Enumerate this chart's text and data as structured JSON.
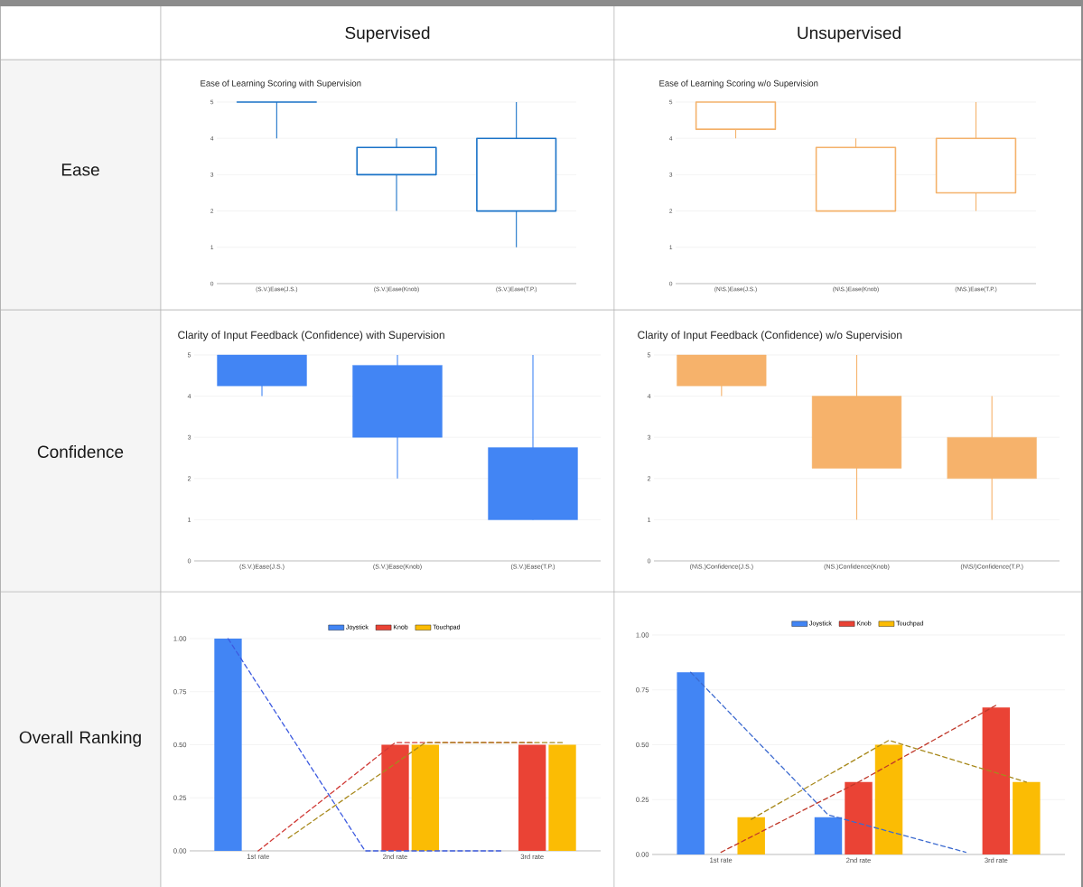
{
  "chart_data": [
    {
      "type": "other",
      "annotations": [
        "Supervised",
        "Unsupervised",
        "Ease",
        "Confidence",
        "Overall Ranking"
      ]
    },
    {
      "type": "candlestick",
      "title": "Ease of Learning Scoring with Supervision",
      "categories": [
        "(S.V.)Ease(J.S.)",
        "(S.V.)Ease(Knob)",
        "(S.V.)Ease(T.P.)"
      ],
      "color": "#1a73c8",
      "ohlc": [
        [
          5,
          5,
          4,
          5
        ],
        [
          3,
          4,
          2,
          3.75
        ],
        [
          2,
          5,
          1,
          4
        ]
      ],
      "ylim": [
        0,
        5
      ],
      "yticks": [
        0,
        1,
        2,
        3,
        4,
        5
      ],
      "grid": "y"
    },
    {
      "type": "candlestick",
      "title": "Ease of Learning Scoring w/o Supervision",
      "categories": [
        "(N\\S.)Ease(J.S.)",
        "(N\\S.)Ease(Knob)",
        "(N\\S.)Ease(T.P.)"
      ],
      "color": "#f4b26b",
      "ohlc": [
        [
          4.25,
          5,
          4,
          5
        ],
        [
          2,
          4,
          2,
          3.75
        ],
        [
          2.5,
          5,
          2,
          4
        ]
      ],
      "ylim": [
        0,
        5
      ],
      "yticks": [
        0,
        1,
        2,
        3,
        4,
        5
      ],
      "grid": "y"
    },
    {
      "type": "candlestick",
      "title": "Clarity of Input Feedback (Confidence) with Supervision",
      "categories": [
        "(S.V.)Ease(J.S.)",
        "(S.V.)Ease(Knob)",
        "(S.V.)Ease(T.P.)"
      ],
      "color": "#4285f4",
      "ohlc": [
        [
          5,
          5,
          4,
          4.25
        ],
        [
          4.75,
          5,
          2,
          3
        ],
        [
          2.75,
          5,
          1,
          1
        ]
      ],
      "ylim": [
        0,
        5
      ],
      "yticks": [
        0,
        1,
        2,
        3,
        4,
        5
      ],
      "grid": "y"
    },
    {
      "type": "candlestick",
      "title": "Clarity of Input Feedback (Confidence) w/o Supervision",
      "categories": [
        "(N\\S.)Confidence(J.S.)",
        "(NS.)Confidence(Knob)",
        "(N\\S/)Confidence(T.P.)"
      ],
      "color": "#f6b26b",
      "ohlc": [
        [
          5,
          5,
          4,
          4.25
        ],
        [
          4,
          5,
          1,
          2.25
        ],
        [
          3,
          4,
          1,
          2
        ]
      ],
      "ylim": [
        0,
        5
      ],
      "yticks": [
        0,
        1,
        2,
        3,
        4,
        5
      ],
      "grid": "y"
    },
    {
      "type": "bar",
      "categories": [
        "1st rate",
        "2nd rate",
        "3rd rate"
      ],
      "ylim": [
        0,
        1
      ],
      "yticks": [
        {
          "value": 0,
          "label": "0.00"
        },
        {
          "value": 0.25,
          "label": "0.25"
        },
        {
          "value": 0.5,
          "label": "0.50"
        },
        {
          "value": 0.75,
          "label": "0.75"
        },
        {
          "value": 1,
          "label": "1.00"
        }
      ],
      "grid": "y",
      "legend": "top",
      "series": [
        {
          "name": "Joystick",
          "color": "#4285f4",
          "values": [
            1,
            0,
            0
          ]
        },
        {
          "name": "Knob",
          "color": "#ea4335",
          "values": [
            0,
            0.5,
            0.5
          ]
        },
        {
          "name": "Touchpad",
          "color": "#fbbc04",
          "values": [
            0,
            0.5,
            0.5
          ]
        },
        {
          "type": "line",
          "line_style": "dashed",
          "color": "#3d5be0",
          "values": [
            1.0,
            0.0,
            0.0
          ]
        },
        {
          "type": "line",
          "line_style": "dashed",
          "color": "#d03a36",
          "values": [
            0,
            0.51,
            0.51
          ]
        },
        {
          "type": "line",
          "line_style": "dashed",
          "color": "#a8891c",
          "values": [
            0.06,
            0.51,
            0.51
          ]
        }
      ]
    },
    {
      "type": "bar",
      "categories": [
        "1st rate",
        "2nd rate",
        "3rd rate"
      ],
      "ylim": [
        0,
        1
      ],
      "yticks": [
        {
          "value": 0,
          "label": "0.00"
        },
        {
          "value": 0.25,
          "label": "0.25"
        },
        {
          "value": 0.5,
          "label": "0.50"
        },
        {
          "value": 0.75,
          "label": "0.75"
        },
        {
          "value": 1,
          "label": "1.00"
        }
      ],
      "grid": "y",
      "legend": "top",
      "series": [
        {
          "name": "Joystick",
          "color": "#4285f4",
          "values": [
            0.83,
            0.17,
            0
          ]
        },
        {
          "name": "Knob",
          "color": "#ea4335",
          "values": [
            0,
            0.33,
            0.67
          ]
        },
        {
          "name": "Touchpad",
          "color": "#fbbc04",
          "values": [
            0.17,
            0.5,
            0.33
          ]
        },
        {
          "type": "line",
          "line_style": "dashed",
          "color": "#3d6bd0",
          "values": [
            0.83,
            0.18,
            0.01
          ]
        },
        {
          "type": "line",
          "line_style": "dashed",
          "color": "#c0392b",
          "values": [
            0.01,
            0.33,
            0.68
          ]
        },
        {
          "type": "line",
          "line_style": "dashed",
          "color": "#a8891c",
          "values": [
            0.16,
            0.52,
            0.33
          ]
        }
      ]
    }
  ]
}
